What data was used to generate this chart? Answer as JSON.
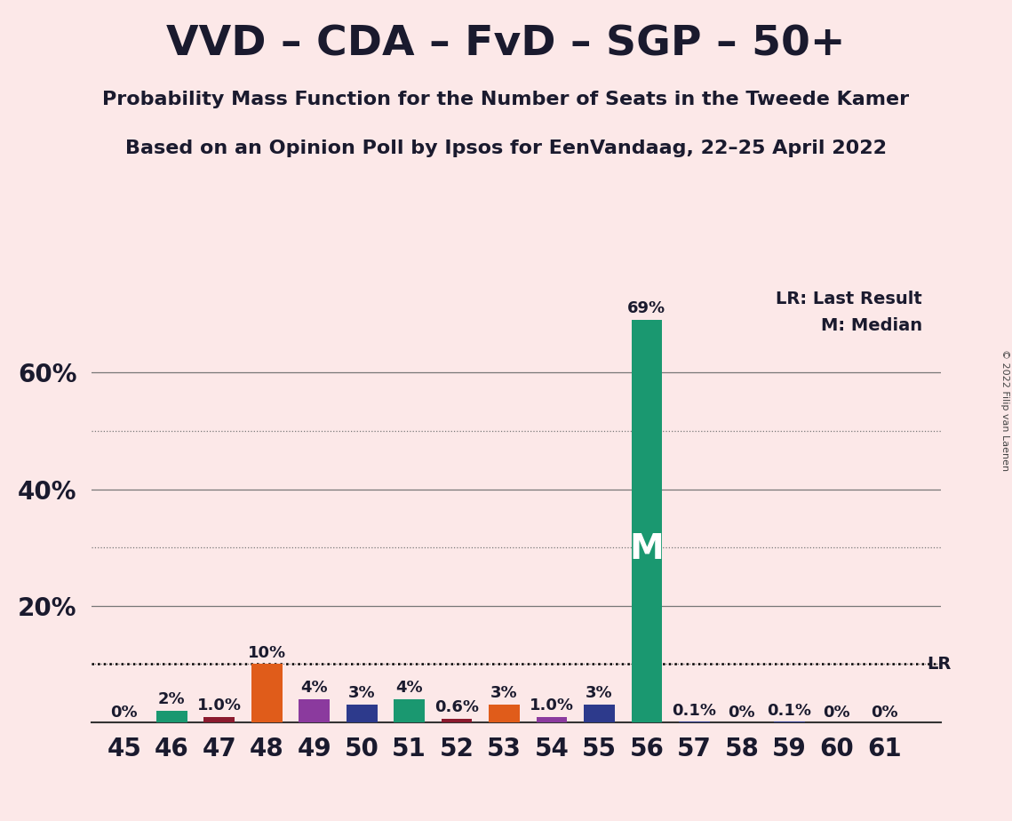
{
  "title": "VVD – CDA – FvD – SGP – 50+",
  "subtitle1": "Probability Mass Function for the Number of Seats in the Tweede Kamer",
  "subtitle2": "Based on an Opinion Poll by Ipsos for EenVandaag, 22–25 April 2022",
  "copyright": "© 2022 Filip van Laenen",
  "seats": [
    45,
    46,
    47,
    48,
    49,
    50,
    51,
    52,
    53,
    54,
    55,
    56,
    57,
    58,
    59,
    60,
    61
  ],
  "values": [
    0,
    2,
    1.0,
    10,
    4,
    3,
    4,
    0.6,
    3,
    1.0,
    3,
    69,
    0.1,
    0,
    0.1,
    0,
    0
  ],
  "labels": [
    "0%",
    "2%",
    "1.0%",
    "10%",
    "4%",
    "3%",
    "4%",
    "0.6%",
    "3%",
    "1.0%",
    "3%",
    "69%",
    "0.1%",
    "0%",
    "0.1%",
    "0%",
    "0%"
  ],
  "colors": [
    "#1a9870",
    "#1a9870",
    "#8b1a2e",
    "#e05c1a",
    "#8b3a9e",
    "#2d3a8c",
    "#1a9870",
    "#8b1a2e",
    "#e05c1a",
    "#8b3a9e",
    "#2d3a8c",
    "#1a9870",
    "#2d3a8c",
    "#2d3a8c",
    "#2d3a8c",
    "#2d3a8c",
    "#2d3a8c"
  ],
  "median_seat": 56,
  "lr_value": 10,
  "background_color": "#fce8e8",
  "bar_width": 0.65,
  "ylim_max": 76,
  "solid_gridlines": [
    20,
    40,
    60
  ],
  "dotted_gridlines": [
    10,
    30,
    50
  ],
  "ytick_positions": [
    20,
    40,
    60
  ],
  "legend_text1": "LR: Last Result",
  "legend_text2": "M: Median",
  "median_label": "M",
  "lr_label": "LR",
  "title_fontsize": 34,
  "subtitle_fontsize": 16,
  "tick_fontsize": 20,
  "label_fontsize": 13,
  "median_fontsize": 28
}
